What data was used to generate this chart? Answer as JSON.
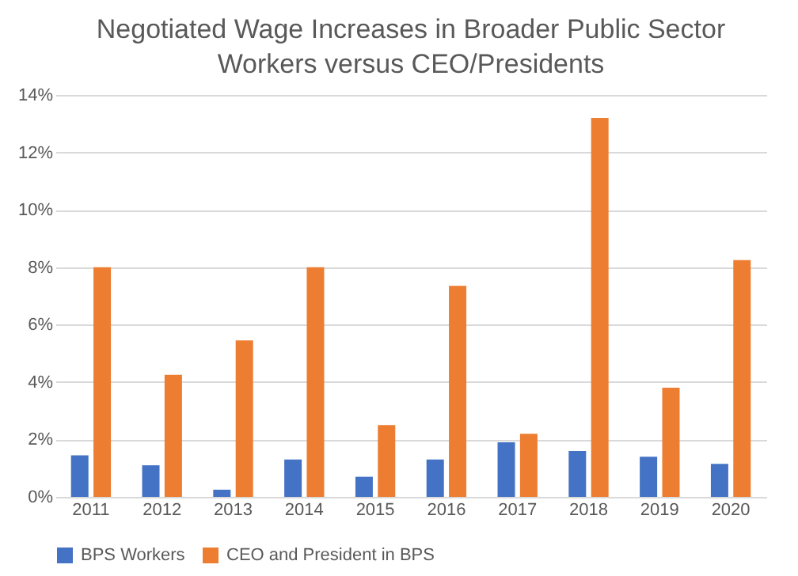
{
  "chart_data": {
    "type": "bar",
    "title": "Negotiated Wage Increases in Broader Public Sector Workers versus CEO/Presidents",
    "categories": [
      "2011",
      "2012",
      "2013",
      "2014",
      "2015",
      "2016",
      "2017",
      "2018",
      "2019",
      "2020"
    ],
    "series": [
      {
        "name": "BPS Workers",
        "color": "#4472c4",
        "values": [
          1.45,
          1.1,
          0.25,
          1.3,
          0.7,
          1.3,
          1.9,
          1.6,
          1.4,
          1.15
        ]
      },
      {
        "name": "CEO and President in BPS",
        "color": "#ed7d31",
        "values": [
          8.0,
          4.25,
          5.45,
          8.0,
          2.5,
          7.35,
          2.2,
          13.2,
          3.8,
          8.25
        ]
      }
    ],
    "ylim": [
      0,
      14
    ],
    "yticks": [
      {
        "value": 0,
        "label": "0%"
      },
      {
        "value": 2,
        "label": "2%"
      },
      {
        "value": 4,
        "label": "4%"
      },
      {
        "value": 6,
        "label": "6%"
      },
      {
        "value": 8,
        "label": "8%"
      },
      {
        "value": 10,
        "label": "10%"
      },
      {
        "value": 12,
        "label": "12%"
      },
      {
        "value": 14,
        "label": "14%"
      }
    ],
    "grid": "y",
    "legend": "bottom"
  }
}
